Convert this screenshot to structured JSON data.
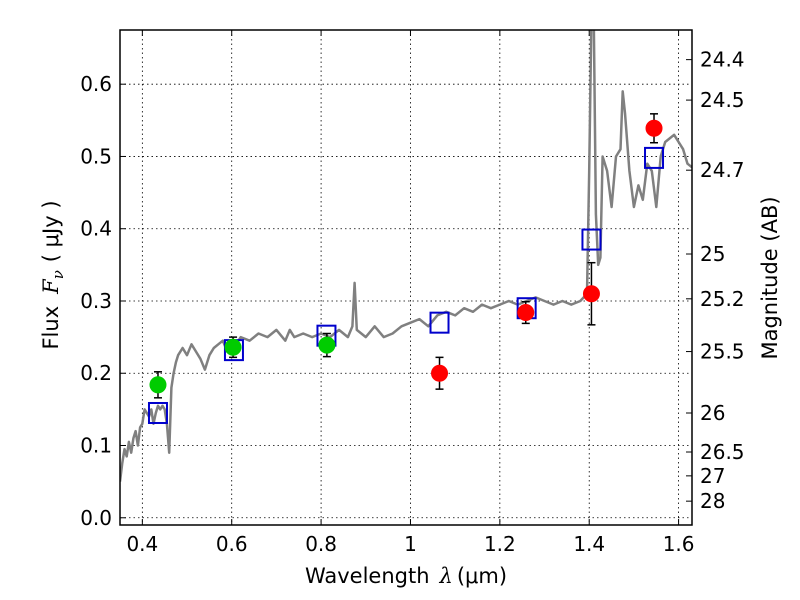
{
  "chart_data": {
    "type": "scatter",
    "title": "",
    "xlabel_parts": {
      "name": "Wavelength",
      "symbol": "λ",
      "unit": "(μm)"
    },
    "ylabel_parts": {
      "name": "Flux",
      "symbol": "F",
      "subscript": "ν",
      "unit": "( μJy )"
    },
    "y2label": "Magnitude (AB)",
    "xlim": [
      0.35,
      1.63
    ],
    "ylim": [
      -0.01,
      0.675
    ],
    "grid": true,
    "x_ticks": [
      0.4,
      0.6,
      0.8,
      1,
      1.2,
      1.4,
      1.6
    ],
    "x_tick_labels": [
      "0.4",
      "0.6",
      "0.8",
      "1",
      "1.2",
      "1.4",
      "1.6"
    ],
    "y_ticks": [
      0.0,
      0.1,
      0.2,
      0.3,
      0.4,
      0.5,
      0.6
    ],
    "y_tick_labels": [
      "0.0",
      "0.1",
      "0.2",
      "0.3",
      "0.4",
      "0.5",
      "0.6"
    ],
    "y2_ticks": [
      {
        "label": "24.4",
        "flux": 0.634
      },
      {
        "label": "24.5",
        "flux": 0.578
      },
      {
        "label": "24.7",
        "flux": 0.481
      },
      {
        "label": "25",
        "flux": 0.365
      },
      {
        "label": "25.2",
        "flux": 0.303
      },
      {
        "label": "25.5",
        "flux": 0.23
      },
      {
        "label": "26",
        "flux": 0.145
      },
      {
        "label": "26.5",
        "flux": 0.091
      },
      {
        "label": "27",
        "flux": 0.058
      },
      {
        "label": "28",
        "flux": 0.023
      }
    ],
    "series": [
      {
        "kind": "line",
        "color": "#808080",
        "points": [
          [
            0.35,
            0.05
          ],
          [
            0.355,
            0.075
          ],
          [
            0.36,
            0.095
          ],
          [
            0.365,
            0.085
          ],
          [
            0.37,
            0.105
          ],
          [
            0.375,
            0.09
          ],
          [
            0.38,
            0.11
          ],
          [
            0.385,
            0.12
          ],
          [
            0.39,
            0.1
          ],
          [
            0.395,
            0.125
          ],
          [
            0.4,
            0.13
          ],
          [
            0.405,
            0.15
          ],
          [
            0.41,
            0.145
          ],
          [
            0.415,
            0.14
          ],
          [
            0.42,
            0.15
          ],
          [
            0.425,
            0.13
          ],
          [
            0.43,
            0.145
          ],
          [
            0.435,
            0.155
          ],
          [
            0.44,
            0.15
          ],
          [
            0.445,
            0.155
          ],
          [
            0.45,
            0.15
          ],
          [
            0.455,
            0.13
          ],
          [
            0.46,
            0.09
          ],
          [
            0.465,
            0.18
          ],
          [
            0.47,
            0.2
          ],
          [
            0.475,
            0.215
          ],
          [
            0.48,
            0.225
          ],
          [
            0.49,
            0.235
          ],
          [
            0.5,
            0.225
          ],
          [
            0.51,
            0.24
          ],
          [
            0.52,
            0.23
          ],
          [
            0.53,
            0.22
          ],
          [
            0.54,
            0.205
          ],
          [
            0.55,
            0.225
          ],
          [
            0.56,
            0.235
          ],
          [
            0.57,
            0.24
          ],
          [
            0.58,
            0.245
          ],
          [
            0.59,
            0.23
          ],
          [
            0.6,
            0.245
          ],
          [
            0.61,
            0.24
          ],
          [
            0.62,
            0.25
          ],
          [
            0.64,
            0.245
          ],
          [
            0.66,
            0.255
          ],
          [
            0.68,
            0.25
          ],
          [
            0.7,
            0.26
          ],
          [
            0.72,
            0.245
          ],
          [
            0.73,
            0.26
          ],
          [
            0.74,
            0.25
          ],
          [
            0.76,
            0.255
          ],
          [
            0.78,
            0.25
          ],
          [
            0.8,
            0.255
          ],
          [
            0.82,
            0.25
          ],
          [
            0.84,
            0.26
          ],
          [
            0.86,
            0.25
          ],
          [
            0.87,
            0.265
          ],
          [
            0.875,
            0.325
          ],
          [
            0.88,
            0.26
          ],
          [
            0.9,
            0.25
          ],
          [
            0.92,
            0.265
          ],
          [
            0.94,
            0.25
          ],
          [
            0.96,
            0.255
          ],
          [
            0.98,
            0.265
          ],
          [
            1.0,
            0.27
          ],
          [
            1.02,
            0.275
          ],
          [
            1.04,
            0.265
          ],
          [
            1.06,
            0.28
          ],
          [
            1.08,
            0.285
          ],
          [
            1.1,
            0.28
          ],
          [
            1.12,
            0.29
          ],
          [
            1.14,
            0.285
          ],
          [
            1.16,
            0.295
          ],
          [
            1.18,
            0.29
          ],
          [
            1.2,
            0.295
          ],
          [
            1.22,
            0.3
          ],
          [
            1.24,
            0.295
          ],
          [
            1.26,
            0.3
          ],
          [
            1.28,
            0.305
          ],
          [
            1.3,
            0.3
          ],
          [
            1.32,
            0.295
          ],
          [
            1.34,
            0.3
          ],
          [
            1.36,
            0.295
          ],
          [
            1.38,
            0.3
          ],
          [
            1.395,
            0.31
          ],
          [
            1.4,
            0.48
          ],
          [
            1.405,
            0.7
          ],
          [
            1.41,
            0.7
          ],
          [
            1.415,
            0.42
          ],
          [
            1.42,
            0.35
          ],
          [
            1.425,
            0.36
          ],
          [
            1.43,
            0.5
          ],
          [
            1.44,
            0.48
          ],
          [
            1.45,
            0.43
          ],
          [
            1.46,
            0.5
          ],
          [
            1.47,
            0.51
          ],
          [
            1.475,
            0.59
          ],
          [
            1.48,
            0.56
          ],
          [
            1.49,
            0.48
          ],
          [
            1.5,
            0.43
          ],
          [
            1.51,
            0.46
          ],
          [
            1.52,
            0.44
          ],
          [
            1.53,
            0.49
          ],
          [
            1.54,
            0.48
          ],
          [
            1.55,
            0.43
          ],
          [
            1.56,
            0.5
          ],
          [
            1.57,
            0.52
          ],
          [
            1.58,
            0.525
          ],
          [
            1.59,
            0.53
          ],
          [
            1.6,
            0.52
          ],
          [
            1.61,
            0.51
          ],
          [
            1.62,
            0.49
          ],
          [
            1.63,
            0.485
          ]
        ]
      },
      {
        "kind": "square",
        "color": "#0000cc",
        "points": [
          [
            0.435,
            0.145
          ],
          [
            0.605,
            0.232
          ],
          [
            0.812,
            0.252
          ],
          [
            1.065,
            0.27
          ],
          [
            1.26,
            0.29
          ],
          [
            1.405,
            0.385
          ],
          [
            1.545,
            0.498
          ]
        ]
      },
      {
        "kind": "circle",
        "color": "#00cc00",
        "points": [
          [
            0.435,
            0.184,
            0.018
          ],
          [
            0.603,
            0.236,
            0.014
          ],
          [
            0.813,
            0.239,
            0.016
          ]
        ]
      },
      {
        "kind": "circle",
        "color": "#ff0000",
        "points": [
          [
            1.065,
            0.2,
            0.022
          ],
          [
            1.258,
            0.284,
            0.015
          ],
          [
            1.405,
            0.31,
            0.043
          ],
          [
            1.545,
            0.539,
            0.02
          ]
        ]
      }
    ]
  }
}
